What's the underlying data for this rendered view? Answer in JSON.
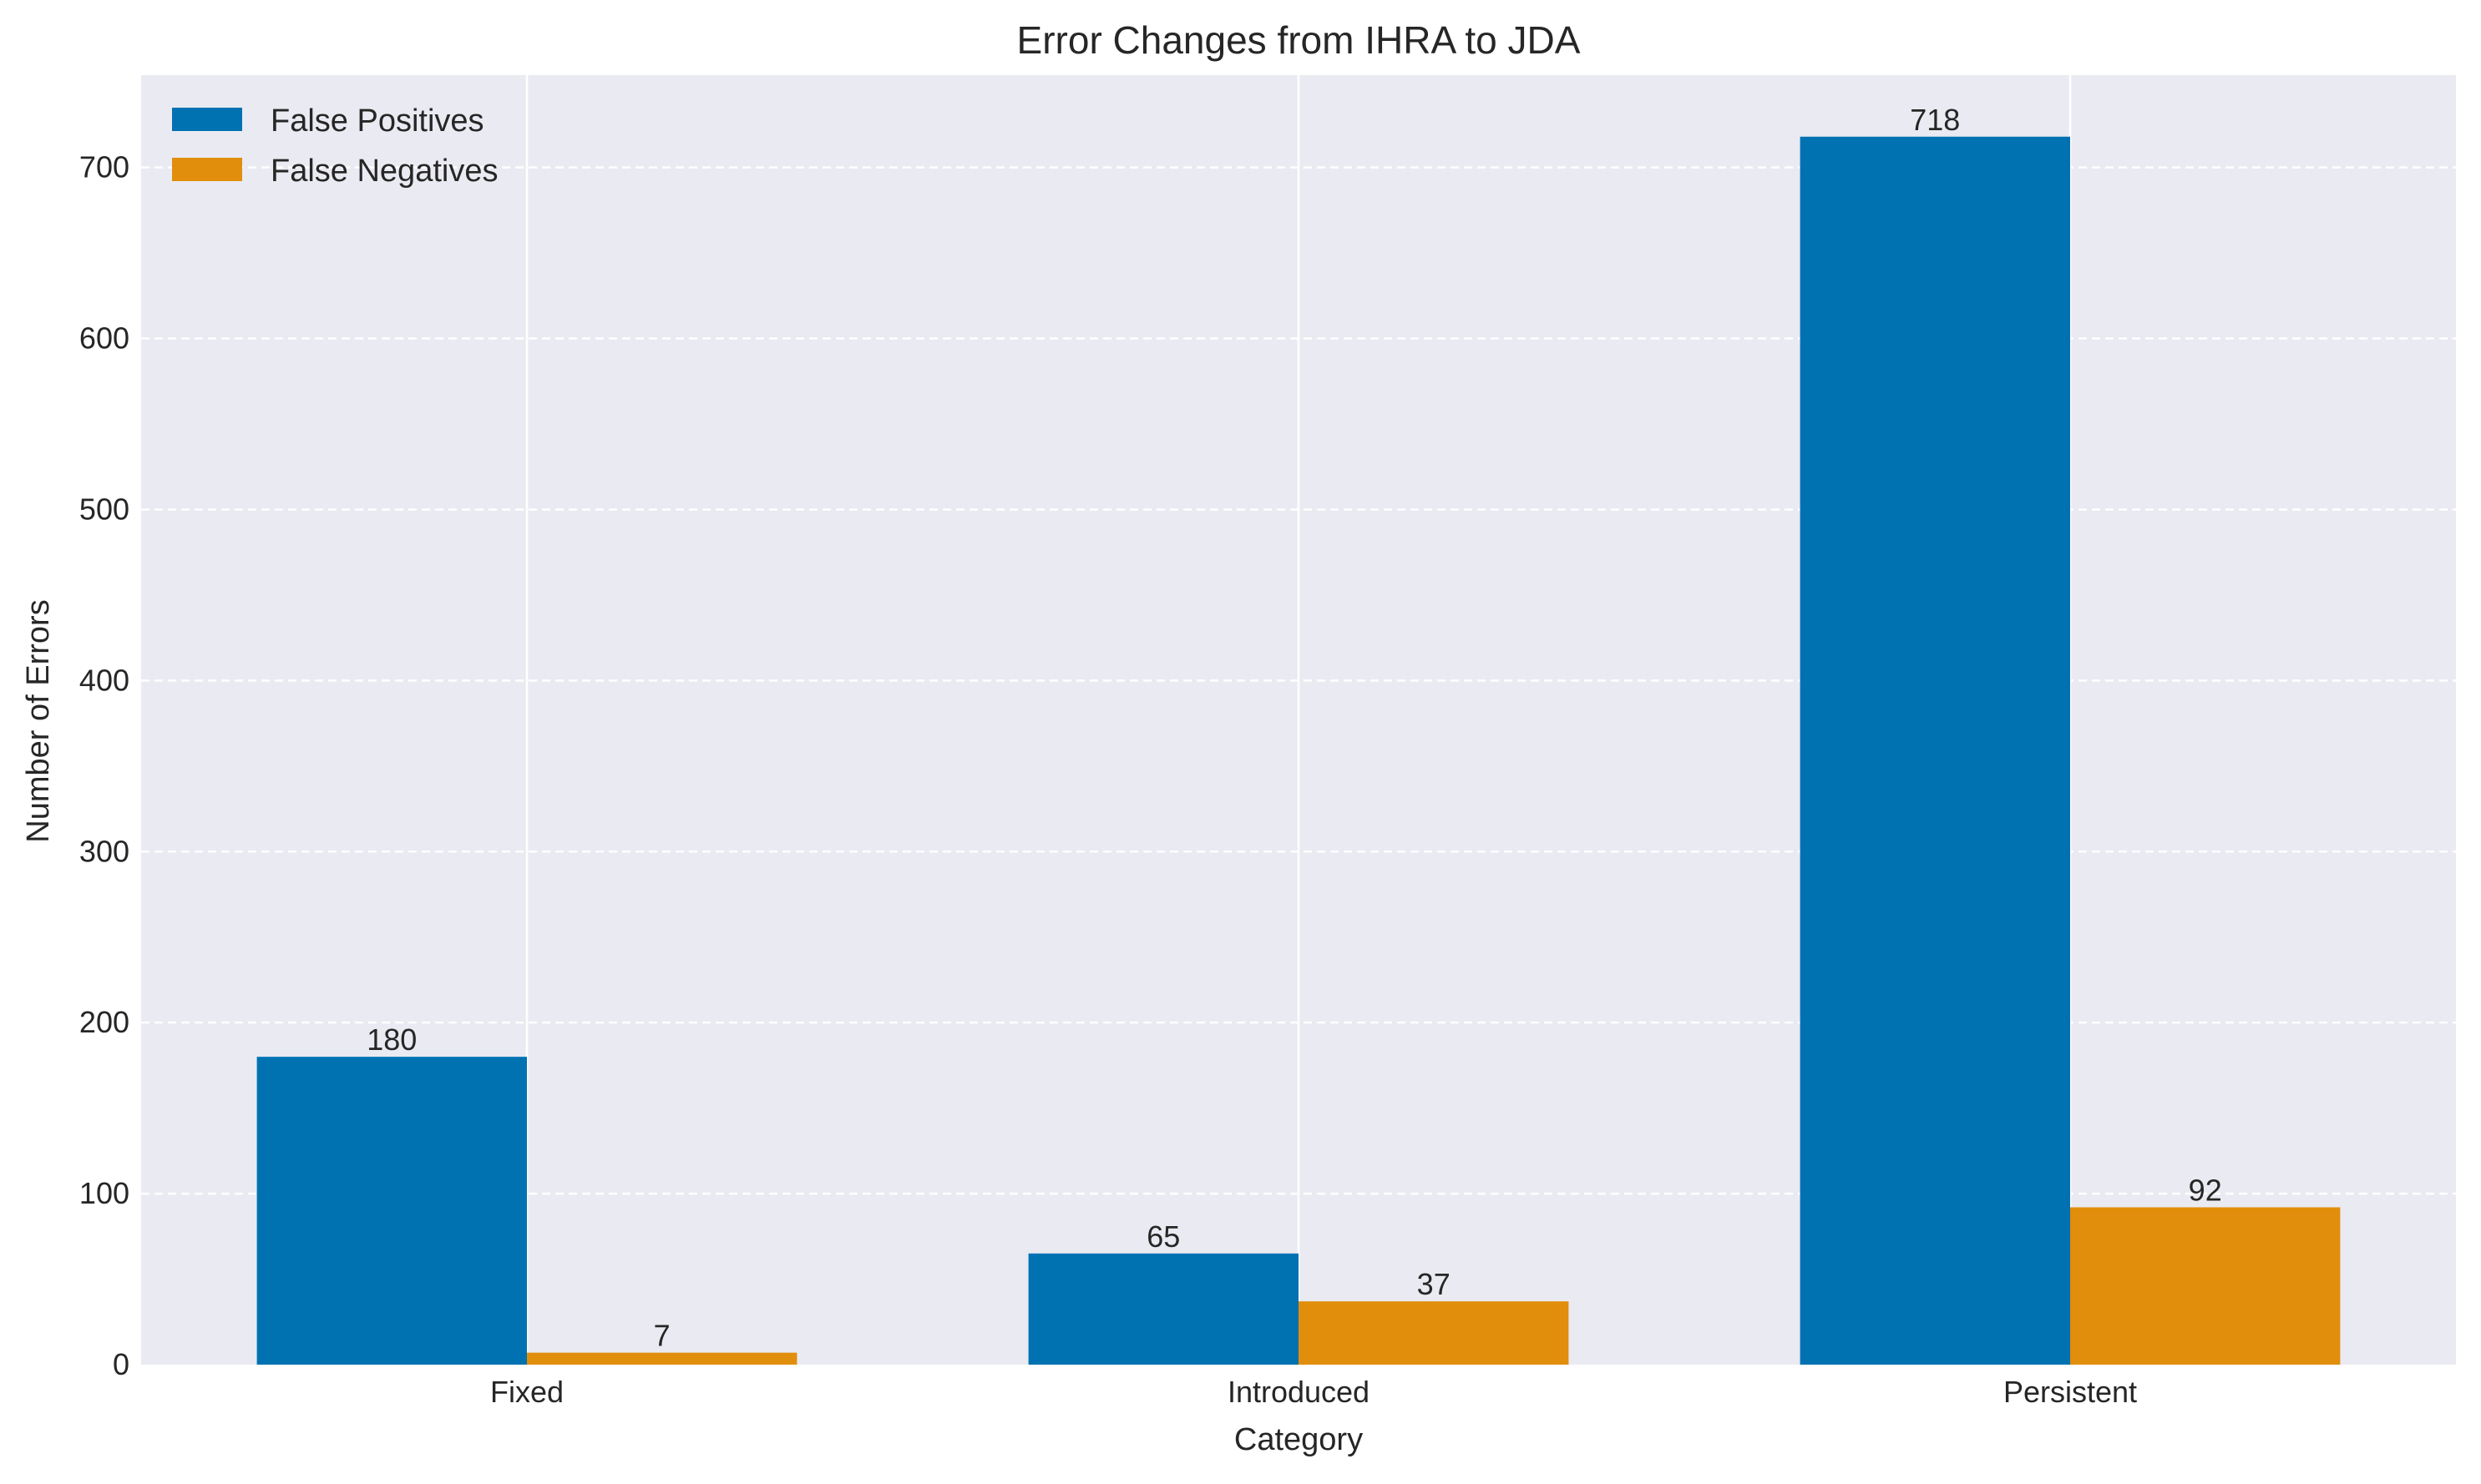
{
  "chart_data": {
    "type": "bar",
    "title": "Error Changes from IHRA to JDA",
    "xlabel": "Category",
    "ylabel": "Number of Errors",
    "categories": [
      "Fixed",
      "Introduced",
      "Persistent"
    ],
    "series": [
      {
        "name": "False Positives",
        "values": [
          180,
          65,
          718
        ],
        "color": "#0072b2"
      },
      {
        "name": "False Negatives",
        "values": [
          7,
          37,
          92
        ],
        "color": "#e08e0b"
      }
    ],
    "ylim": [
      0,
      754
    ],
    "yticks": [
      0,
      100,
      200,
      300,
      400,
      500,
      600,
      700
    ],
    "grid": true,
    "legend_position": "top-left",
    "background_color": "#eaeaf2",
    "grid_color": "#ffffff"
  }
}
